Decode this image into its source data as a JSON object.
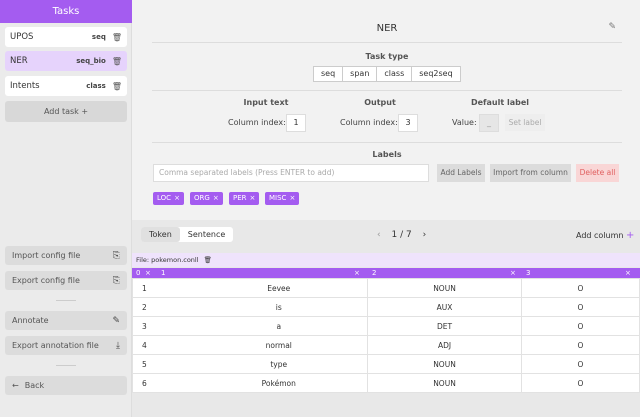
{
  "sidebar": {
    "title": "Tasks",
    "tasks": [
      {
        "name": "UPOS",
        "type": "seq"
      },
      {
        "name": "NER",
        "type": "seq_bio"
      },
      {
        "name": "Intents",
        "type": "class"
      }
    ],
    "add_task": "Add task",
    "import_config": "Import config file",
    "export_config": "Export config file",
    "annotate": "Annotate",
    "export_annotation": "Export annotation file",
    "back": "Back"
  },
  "header": {
    "task_name": "NER"
  },
  "task_type": {
    "title": "Task type",
    "options": [
      "seq",
      "span",
      "class",
      "seq2seq"
    ]
  },
  "input_text": {
    "title": "Input text",
    "label": "Column index:",
    "value": "1"
  },
  "output": {
    "title": "Output",
    "label": "Column index:",
    "value": "3"
  },
  "default_label": {
    "title": "Default label",
    "label": "Value:",
    "value": "_",
    "button": "Set label"
  },
  "labels": {
    "title": "Labels",
    "placeholder": "Comma separated labels (Press ENTER to add)",
    "add_button": "Add Labels",
    "import_button": "Import from column",
    "delete_button": "Delete all",
    "chips": [
      "LOC",
      "ORG",
      "PER",
      "MISC"
    ]
  },
  "table_view": {
    "tabs": [
      "Token",
      "Sentence"
    ],
    "page": "1 / 7",
    "add_column": "Add column",
    "file": "File: pokemon.conll",
    "columns": [
      "0",
      "1",
      "2",
      "3"
    ],
    "rows": [
      [
        "1",
        "Eevee",
        "NOUN",
        "O"
      ],
      [
        "2",
        "is",
        "AUX",
        "O"
      ],
      [
        "3",
        "a",
        "DET",
        "O"
      ],
      [
        "4",
        "normal",
        "ADJ",
        "O"
      ],
      [
        "5",
        "type",
        "NOUN",
        "O"
      ],
      [
        "6",
        "Pokémon",
        "NOUN",
        "O"
      ]
    ]
  },
  "colors": {
    "accent": "#a45cf0",
    "accent_light": "#e6d3fc",
    "danger_bg": "#f9d6d6"
  }
}
